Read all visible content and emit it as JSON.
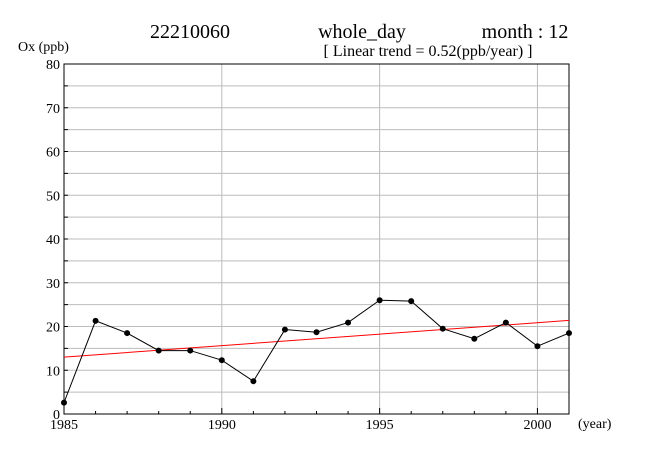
{
  "header": {
    "station_id": "22210060",
    "period": "whole_day",
    "month_label": "month : 12",
    "trend_label": "[ Linear trend = 0.52(ppb/year) ]"
  },
  "chart_data": {
    "type": "line",
    "ylabel": "Ox (ppb)",
    "xlabel": "(year)",
    "xlim": [
      1985,
      2001
    ],
    "ylim": [
      0,
      80
    ],
    "x_ticks": [
      1985,
      1990,
      1995,
      2000
    ],
    "y_ticks": [
      0,
      10,
      20,
      30,
      40,
      50,
      60,
      70,
      80
    ],
    "grid": true,
    "series": [
      {
        "x": [
          1985,
          1986,
          1987,
          1988,
          1989,
          1990,
          1991,
          1992,
          1993,
          1994,
          1995,
          1996,
          1997,
          1998,
          1999,
          2000,
          2001
        ],
        "values": [
          2.6,
          21.3,
          18.5,
          14.5,
          14.5,
          12.3,
          7.5,
          19.3,
          18.7,
          20.9,
          26.0,
          25.8,
          19.5,
          17.2,
          20.9,
          15.5,
          18.5
        ],
        "color": "#000000"
      }
    ],
    "trend_line": {
      "slope": 0.52,
      "x": [
        1985,
        2001
      ],
      "values": [
        13.0,
        21.4
      ],
      "color": "#ff0000"
    }
  }
}
